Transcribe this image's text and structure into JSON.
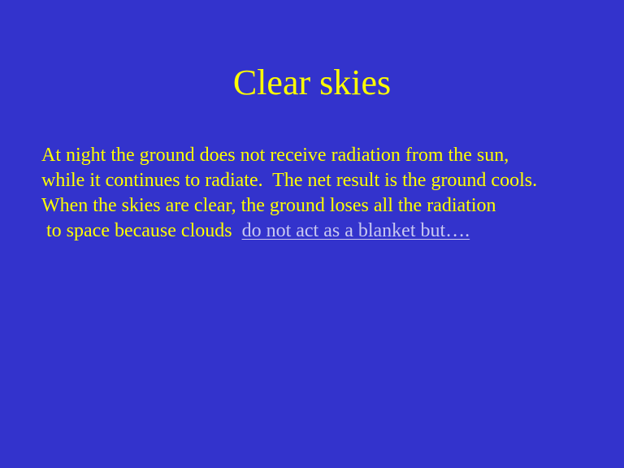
{
  "slide": {
    "title": "Clear skies",
    "lines": [
      "At night the ground does not receive radiation from the sun,",
      "while it continues to radiate.  The net result is the ground cools.",
      "When the skies are clear, the ground loses all the radiation"
    ],
    "last_line_prefix": " to space because clouds  ",
    "link_text": "do not act as a blanket but….",
    "colors": {
      "background": "#3333cc",
      "text": "#ffff00",
      "link": "#c9c9f0"
    }
  }
}
